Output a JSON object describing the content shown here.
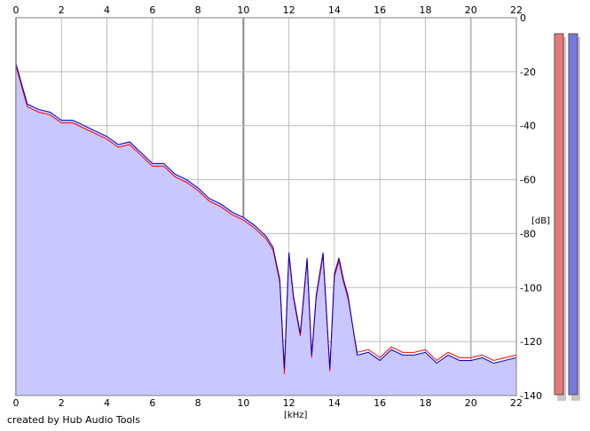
{
  "chart_data": {
    "type": "area",
    "xlabel": "[kHz]",
    "ylabel": "[dB]",
    "xlim": [
      0,
      22
    ],
    "ylim": [
      -140,
      0
    ],
    "x_ticks": [
      0,
      2,
      4,
      6,
      8,
      10,
      12,
      14,
      16,
      18,
      20,
      22
    ],
    "y_ticks": [
      0,
      -20,
      -40,
      -60,
      -80,
      -100,
      -120,
      -140
    ],
    "grid": true,
    "series": [
      {
        "color": "#ff0000",
        "x": [
          0,
          0.5,
          1,
          1.5,
          2,
          2.5,
          3,
          3.5,
          4,
          4.5,
          5,
          5.5,
          6,
          6.5,
          7,
          7.5,
          8,
          8.5,
          9,
          9.5,
          10,
          10.5,
          11,
          11.3,
          11.6,
          11.8,
          12,
          12.2,
          12.5,
          12.8,
          13.0,
          13.2,
          13.5,
          13.8,
          14.0,
          14.2,
          14.4,
          14.6,
          15,
          15.5,
          16,
          16.5,
          17,
          17.5,
          18,
          18.5,
          19,
          19.5,
          20,
          20.5,
          21,
          21.5,
          22
        ],
        "values": [
          -18,
          -33,
          -35,
          -36,
          -39,
          -39,
          -41,
          -43,
          -45,
          -48,
          -47,
          -51,
          -55,
          -55,
          -59,
          -61,
          -64,
          -68,
          -70,
          -73,
          -75,
          -78,
          -82,
          -86,
          -98,
          -132,
          -88,
          -104,
          -118,
          -90,
          -126,
          -104,
          -88,
          -131,
          -96,
          -90,
          -98,
          -104,
          -124,
          -123,
          -126,
          -122,
          -124,
          -124,
          -123,
          -127,
          -124,
          -126,
          -126,
          -125,
          -127,
          -126,
          -125
        ]
      },
      {
        "color": "#0000cc",
        "x": [
          0,
          0.5,
          1,
          1.5,
          2,
          2.5,
          3,
          3.5,
          4,
          4.5,
          5,
          5.5,
          6,
          6.5,
          7,
          7.5,
          8,
          8.5,
          9,
          9.5,
          10,
          10.5,
          11,
          11.3,
          11.6,
          11.8,
          12,
          12.2,
          12.5,
          12.8,
          13.0,
          13.2,
          13.5,
          13.8,
          14.0,
          14.2,
          14.4,
          14.6,
          15,
          15.5,
          16,
          16.5,
          17,
          17.5,
          18,
          18.5,
          19,
          19.5,
          20,
          20.5,
          21,
          21.5,
          22
        ],
        "values": [
          -17,
          -32,
          -34,
          -35,
          -38,
          -38,
          -40,
          -42,
          -44,
          -47,
          -46,
          -50,
          -54,
          -54,
          -58,
          -60,
          -63,
          -67,
          -69,
          -72,
          -74,
          -77,
          -81,
          -85,
          -97,
          -130,
          -87,
          -103,
          -117,
          -89,
          -125,
          -103,
          -87,
          -130,
          -95,
          -89,
          -97,
          -103,
          -125,
          -124,
          -127,
          -123,
          -125,
          -125,
          -124,
          -128,
          -125,
          -127,
          -127,
          -126,
          -128,
          -127,
          -126
        ]
      }
    ],
    "level_meters": [
      {
        "color": "#e87878"
      },
      {
        "color": "#7878e0"
      }
    ],
    "fill_color": "#c8c8ff"
  },
  "footer": {
    "credit": "created by Hub Audio Tools"
  }
}
